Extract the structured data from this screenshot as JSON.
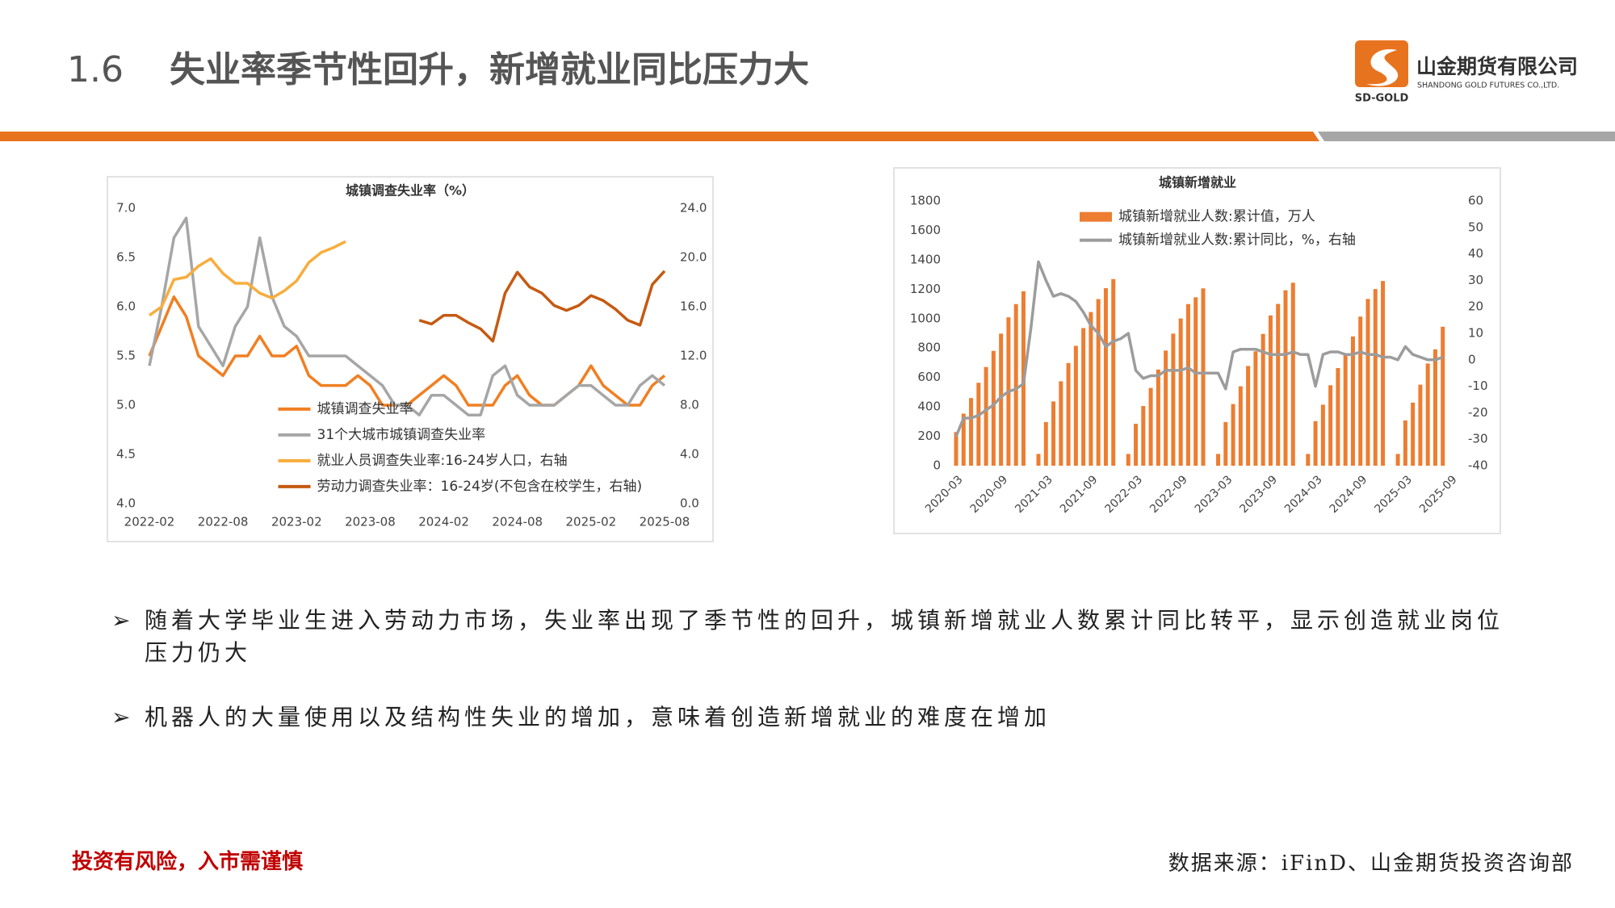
{
  "header": {
    "number": "1.6",
    "title": "失业率季节性回升，新增就业同比压力大",
    "logo_name": "山金期货有限公司",
    "logo_english": "SHANDONG GOLD FUTURES CO.,LTD.",
    "logo_short": "SD-GOLD"
  },
  "bullets": [
    "随着大学毕业生进入劳动力市场，失业率出现了季节性的回升，城镇新增就业人数累计同比转平，显示创造就业岗位压力仍大",
    "机器人的大量使用以及结构性失业的增加，意味着创造新增就业的难度在增加"
  ],
  "footer": {
    "warning": "投资有风险，入市需谨慎",
    "source": "数据来源：iFinD、山金期货投资咨询部"
  },
  "chart_data": [
    {
      "type": "line",
      "title": "城镇调查失业率（%）",
      "legend": "lower-left",
      "grid": false,
      "categories": [
        "2022-02",
        null,
        null,
        null,
        null,
        null,
        "2022-08",
        null,
        null,
        null,
        null,
        null,
        "2023-02",
        null,
        null,
        null,
        null,
        null,
        "2023-08",
        null,
        null,
        null,
        null,
        null,
        "2024-02",
        null,
        null,
        null,
        null,
        null,
        "2024-08",
        null,
        null,
        null,
        null,
        null,
        "2025-02",
        null,
        null,
        null,
        null,
        null,
        "2025-08"
      ],
      "ylim": [
        4,
        7
      ],
      "yticks": [
        {
          "value": 4,
          "label": "4.0"
        },
        4.5,
        {
          "value": 5,
          "label": "5.0"
        },
        5.5,
        {
          "value": 6,
          "label": "6.0"
        },
        6.5,
        {
          "value": 7,
          "label": "7.0"
        }
      ],
      "y2lim": [
        0,
        24
      ],
      "y2ticks": [
        {
          "value": 0,
          "label": "0.0"
        },
        {
          "value": 4,
          "label": "4.0"
        },
        {
          "value": 8,
          "label": "8.0"
        },
        {
          "value": 12,
          "label": "12.0"
        },
        {
          "value": 16,
          "label": "16.0"
        },
        {
          "value": 20,
          "label": "20.0"
        },
        {
          "value": 24,
          "label": "24.0"
        }
      ],
      "series": [
        {
          "name": "城镇调查失业率",
          "color": "#f07f22",
          "values": [
            5.5,
            5.8,
            6.1,
            5.9,
            5.5,
            5.4,
            5.3,
            5.5,
            5.5,
            5.7,
            5.5,
            5.5,
            5.6,
            5.3,
            5.2,
            5.2,
            5.2,
            5.3,
            5.2,
            5.0,
            5.0,
            5.0,
            5.1,
            5.2,
            5.3,
            5.2,
            5.0,
            5.0,
            5.0,
            5.2,
            5.3,
            5.1,
            5.0,
            5.0,
            5.1,
            5.2,
            5.4,
            5.2,
            5.1,
            5.0,
            5.0,
            5.2,
            5.3
          ]
        },
        {
          "name": "31个大城市城镇调查失业率",
          "color": "#a6a6a6",
          "values": [
            5.4,
            6.0,
            6.7,
            6.9,
            5.8,
            5.6,
            5.4,
            5.8,
            6.0,
            6.7,
            6.1,
            5.8,
            5.7,
            5.5,
            5.5,
            5.5,
            5.5,
            5.4,
            5.3,
            5.2,
            5.0,
            5.0,
            4.9,
            5.1,
            5.1,
            5.0,
            4.9,
            4.9,
            5.3,
            5.4,
            5.1,
            5.0,
            5.0,
            5.0,
            5.1,
            5.2,
            5.2,
            5.1,
            5.0,
            5.0,
            5.2,
            5.3,
            5.2
          ]
        },
        {
          "name": "就业人员调查失业率:16-24岁人口，右轴",
          "color": "#f8ad3c",
          "axis": "y2",
          "values": [
            15.3,
            16.0,
            18.2,
            18.4,
            19.3,
            19.9,
            18.7,
            17.9,
            17.9,
            17.1,
            16.7,
            17.3,
            18.1,
            19.6,
            20.4,
            20.8,
            21.3,
            null,
            null,
            null,
            null,
            null,
            null,
            null,
            null,
            null,
            null,
            null,
            null,
            null,
            null,
            null,
            null,
            null,
            null,
            null,
            null,
            null,
            null,
            null,
            null,
            null,
            null
          ]
        },
        {
          "name": "劳动力调查失业率：16-24岁(不包含在校学生，右轴)",
          "color": "#c55a11",
          "axis": "y2",
          "values": [
            null,
            null,
            null,
            null,
            null,
            null,
            null,
            null,
            null,
            null,
            null,
            null,
            null,
            null,
            null,
            null,
            null,
            null,
            null,
            null,
            null,
            null,
            14.9,
            14.6,
            15.3,
            15.3,
            14.7,
            14.2,
            13.2,
            17.1,
            18.8,
            17.6,
            17.1,
            16.1,
            15.7,
            16.1,
            16.9,
            16.5,
            15.8,
            14.9,
            14.5,
            17.8,
            18.9
          ]
        }
      ]
    },
    {
      "type": "bar",
      "title": "城镇新增就业",
      "legend": "upper-left",
      "grid": false,
      "categories": [
        "2020-03",
        null,
        null,
        null,
        null,
        null,
        "2020-09",
        null,
        null,
        null,
        null,
        null,
        "2021-03",
        null,
        null,
        null,
        null,
        null,
        "2021-09",
        null,
        null,
        null,
        null,
        null,
        "2022-03",
        null,
        null,
        null,
        null,
        null,
        "2022-09",
        null,
        null,
        null,
        null,
        null,
        "2023-03",
        null,
        null,
        null,
        null,
        null,
        "2023-09",
        null,
        null,
        null,
        null,
        null,
        "2024-03",
        null,
        null,
        null,
        null,
        null,
        "2024-09",
        null,
        null,
        null,
        null,
        null,
        "2025-03",
        null,
        null,
        null,
        null,
        null,
        "2025-09"
      ],
      "ylim": [
        0,
        1800
      ],
      "yticks": [
        0,
        200,
        400,
        600,
        800,
        1000,
        1200,
        1400,
        1600,
        1800
      ],
      "y2lim": [
        -40,
        60
      ],
      "y2ticks": [
        -40,
        -30,
        -20,
        -10,
        0,
        10,
        20,
        30,
        40,
        50,
        60
      ],
      "series": [
        {
          "name": "城镇新增就业人数:累计值，万人",
          "type": "bar",
          "color": "#ed7d31",
          "values": [
            229,
            354,
            460,
            564,
            671,
            781,
            898,
            1009,
            1099,
            1186,
            null,
            80,
            297,
            437,
            574,
            698,
            815,
            936,
            1045,
            1133,
            1207,
            1269,
            null,
            80,
            285,
            406,
            529,
            654,
            783,
            898,
            1001,
            1099,
            1145,
            1206,
            null,
            80,
            297,
            419,
            540,
            678,
            778,
            896,
            1022,
            1100,
            1193,
            1244,
            null,
            80,
            303,
            415,
            547,
            664,
            764,
            879,
            1014,
            1134,
            1201,
            1256,
            null,
            80,
            308,
            429,
            551,
            695,
            791,
            945,
            null
          ]
        },
        {
          "name": "城镇新增就业人数:累计同比，%，右轴",
          "type": "line",
          "axis": "y2",
          "color": "#9c9c9c",
          "values": [
            -29,
            -22,
            -22,
            -21,
            -19,
            -17,
            -14,
            -12,
            -11,
            -9,
            12,
            37,
            30,
            24,
            25,
            24,
            22,
            18,
            13,
            10,
            5,
            7,
            8,
            10,
            -4,
            -7,
            -6,
            -6,
            -4,
            -4,
            -4,
            -3,
            -5,
            -5,
            -5,
            -5,
            -11,
            3,
            4,
            4,
            4,
            3,
            2,
            2,
            2,
            3,
            2,
            2,
            -10,
            2,
            3,
            3,
            2,
            2,
            3,
            2,
            2,
            1,
            1,
            0,
            5,
            2,
            1,
            0,
            0,
            1,
            null
          ]
        }
      ]
    }
  ]
}
